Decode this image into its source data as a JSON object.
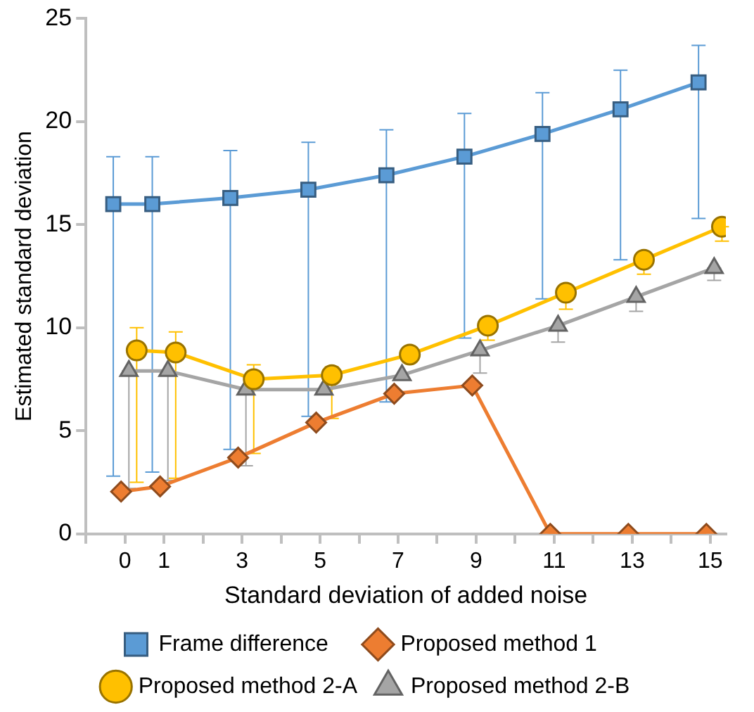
{
  "chart_data": {
    "type": "line",
    "xlabel": "Standard deviation of added noise",
    "ylabel": "Estimated standard deviation",
    "xlim": [
      -1,
      15.4
    ],
    "xticks": [
      {
        "value": -1,
        "label": null
      },
      0,
      1,
      {
        "value": 2,
        "label": null
      },
      3,
      {
        "value": 4,
        "label": null
      },
      5,
      {
        "value": 6,
        "label": null
      },
      7,
      {
        "value": 8,
        "label": null
      },
      9,
      {
        "value": 10,
        "label": null
      },
      11,
      {
        "value": 12,
        "label": null
      },
      13,
      {
        "value": 14,
        "label": null
      },
      15
    ],
    "ylim": [
      0,
      25
    ],
    "yticks": [
      0,
      5,
      10,
      15,
      20,
      25
    ],
    "grid": false,
    "legend": "bottom",
    "line_style": "solid",
    "series": [
      {
        "name": "Frame difference",
        "color": "#5b9bd5",
        "marker": "square",
        "x": [
          -0.3,
          0.7,
          2.7,
          4.7,
          6.7,
          8.7,
          10.7,
          12.7,
          14.7
        ],
        "values": [
          16.0,
          16.0,
          16.3,
          16.7,
          17.4,
          18.3,
          19.4,
          20.6,
          21.9
        ],
        "errors": [
          [
            2.8,
            18.3
          ],
          [
            3.0,
            18.3
          ],
          [
            4.1,
            18.6
          ],
          [
            5.7,
            19.0
          ],
          [
            6.4,
            19.6
          ],
          [
            9.5,
            20.4
          ],
          [
            11.4,
            21.4
          ],
          [
            13.3,
            22.5
          ],
          [
            15.3,
            23.7
          ]
        ]
      },
      {
        "name": "Proposed method 1",
        "color": "#ed7d31",
        "marker": "diamond",
        "x": [
          -0.1,
          0.9,
          2.9,
          4.9,
          6.9,
          8.9,
          10.9,
          12.9,
          14.9
        ],
        "values": [
          2.05,
          2.3,
          3.7,
          5.4,
          6.8,
          7.2,
          0,
          0,
          0
        ]
      },
      {
        "name": "Proposed method 2-A",
        "color": "#ffc000",
        "marker": "circle",
        "x": [
          0.3,
          1.3,
          3.3,
          5.3,
          7.3,
          9.3,
          11.3,
          13.3,
          15.3
        ],
        "values": [
          8.9,
          8.8,
          7.5,
          7.7,
          8.7,
          10.1,
          11.7,
          13.3,
          14.9
        ],
        "errors": [
          [
            2.5,
            10.0
          ],
          [
            2.7,
            9.8
          ],
          [
            3.9,
            8.2
          ],
          [
            5.6,
            8.1
          ],
          null,
          [
            9.4,
            10.1
          ],
          [
            10.9,
            11.7
          ],
          [
            12.6,
            13.3
          ],
          [
            14.2,
            14.9
          ]
        ]
      },
      {
        "name": "Proposed method 2-B",
        "color": "#a5a5a5",
        "marker": "triangle",
        "x": [
          0.1,
          1.1,
          3.1,
          5.1,
          7.1,
          9.1,
          11.1,
          13.1,
          15.1
        ],
        "values": [
          7.9,
          7.9,
          7.0,
          7.0,
          7.7,
          8.9,
          10.1,
          11.5,
          12.9
        ],
        "errors": [
          [
            2.2,
            7.9
          ],
          [
            2.6,
            7.9
          ],
          [
            3.3,
            7.0
          ],
          null,
          null,
          [
            7.8,
            8.9
          ],
          [
            9.3,
            10.1
          ],
          [
            10.8,
            11.5
          ],
          [
            12.3,
            12.9
          ]
        ]
      }
    ]
  }
}
